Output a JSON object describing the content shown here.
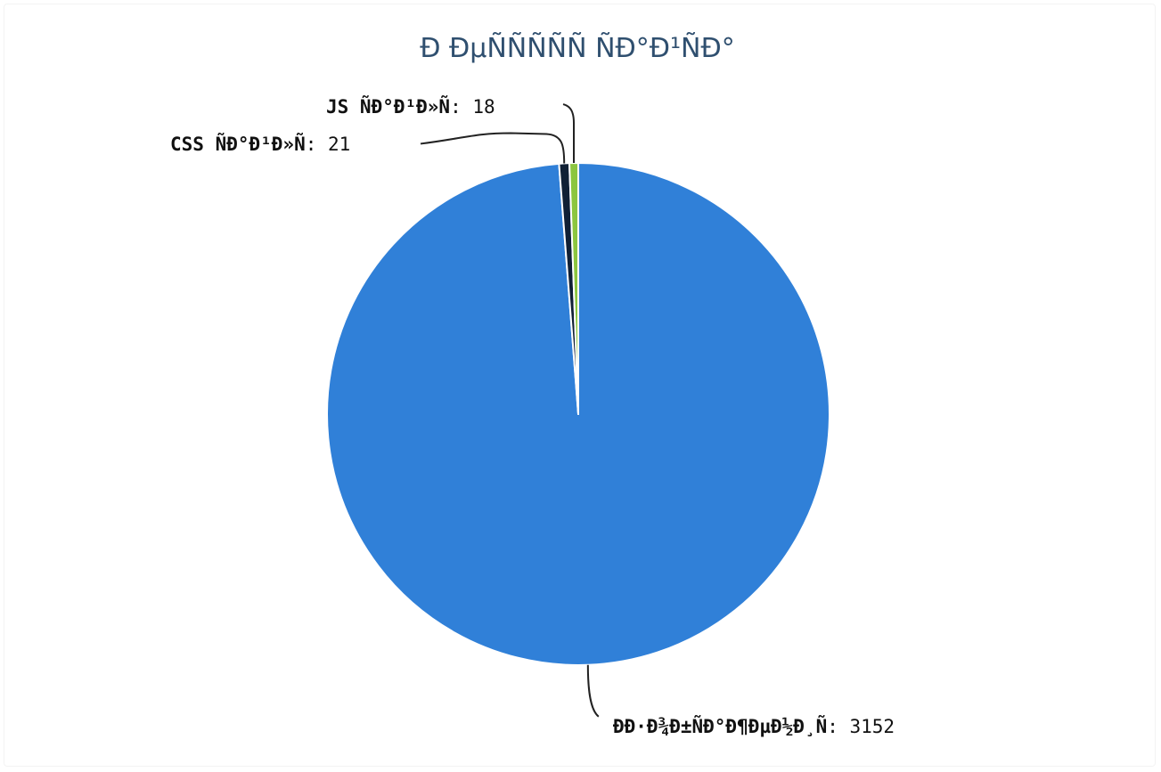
{
  "chart_data": {
    "type": "pie",
    "title": "Ð ÐµÑÑÑÑÑ ÑÐ°Ð¹ÑÐ°",
    "slices": [
      {
        "label": "ÐÐ·Ð¾Ð±ÑÐ°Ð¶ÐµÐ½Ð¸Ñ",
        "value": 3152,
        "color": "#3080d8"
      },
      {
        "label": "CSS ÑÐ°Ð¹Ð»Ñ",
        "value": 21,
        "color": "#102035"
      },
      {
        "label": "JS ÑÐ°Ð¹Ð»Ñ",
        "value": 18,
        "color": "#8cc63f"
      }
    ],
    "start": "top",
    "direction": "clockwise"
  }
}
